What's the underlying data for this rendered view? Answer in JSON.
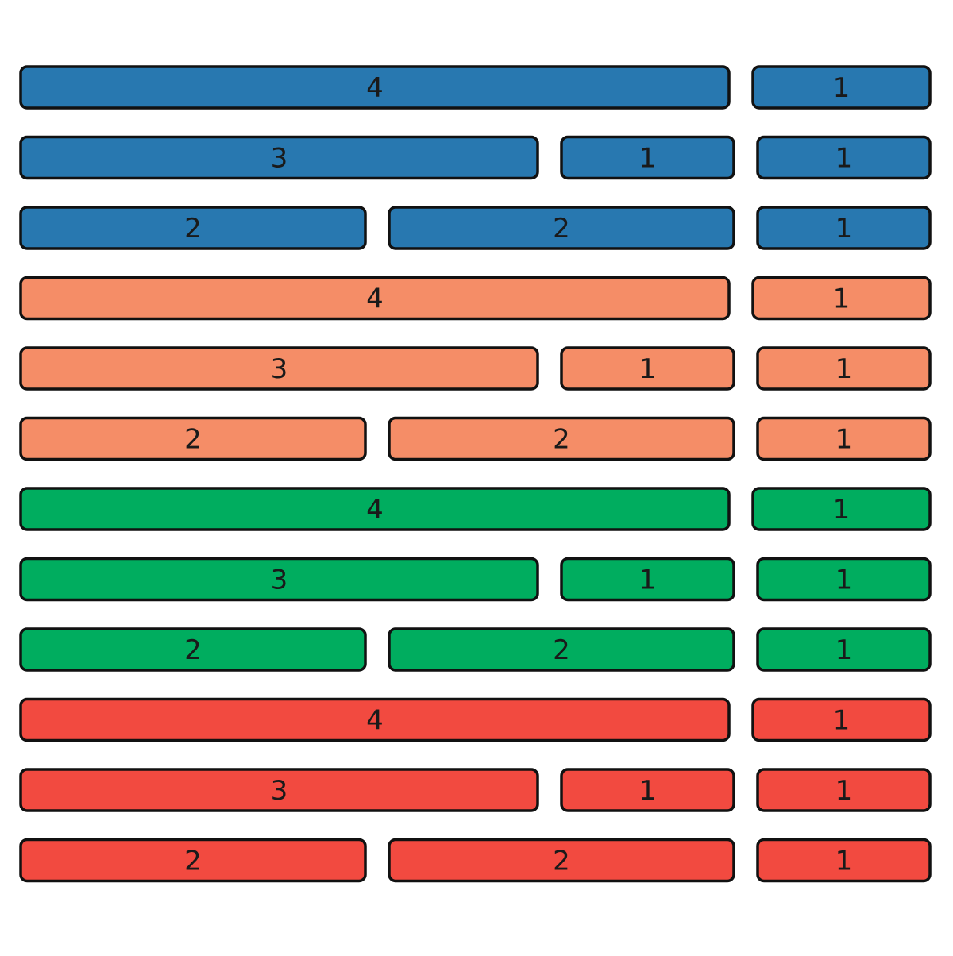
{
  "rows": [
    {
      "color": "#2878b0",
      "segments": [
        4,
        1
      ]
    },
    {
      "color": "#2878b0",
      "segments": [
        3,
        1,
        1
      ]
    },
    {
      "color": "#2878b0",
      "segments": [
        2,
        2,
        1
      ]
    },
    {
      "color": "#f58d67",
      "segments": [
        4,
        1
      ]
    },
    {
      "color": "#f58d67",
      "segments": [
        3,
        1,
        1
      ]
    },
    {
      "color": "#f58d67",
      "segments": [
        2,
        2,
        1
      ]
    },
    {
      "color": "#00ad5f",
      "segments": [
        4,
        1
      ]
    },
    {
      "color": "#00ad5f",
      "segments": [
        3,
        1,
        1
      ]
    },
    {
      "color": "#00ad5f",
      "segments": [
        2,
        2,
        1
      ]
    },
    {
      "color": "#f24a40",
      "segments": [
        4,
        1
      ]
    },
    {
      "color": "#f24a40",
      "segments": [
        3,
        1,
        1
      ]
    },
    {
      "color": "#f24a40",
      "segments": [
        2,
        2,
        1
      ]
    }
  ]
}
